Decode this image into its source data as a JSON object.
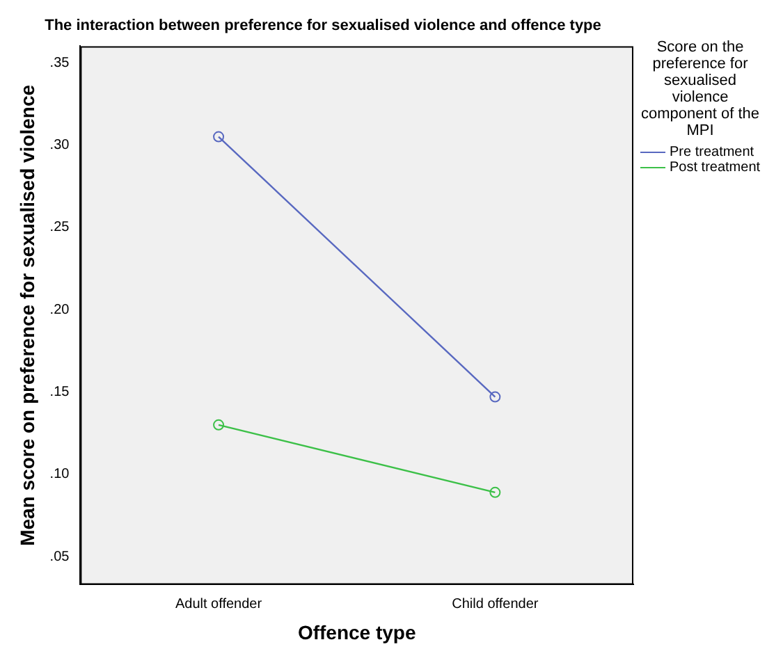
{
  "chart_data": {
    "type": "line",
    "title": "The interaction between preference for sexualised violence and offence type",
    "xlabel": "Offence type",
    "ylabel": "Mean score on preference for sexualised violence",
    "legend_title": "Score on the preference for sexualised violence component of the MPI",
    "categories": [
      "Adult offender",
      "Child offender"
    ],
    "series": [
      {
        "name": "Pre treatment",
        "color": "#5868c0",
        "values": [
          0.305,
          0.147
        ]
      },
      {
        "name": "Post treatment",
        "color": "#3cc048",
        "values": [
          0.13,
          0.089
        ]
      }
    ],
    "ylim": [
      0.033,
      0.36
    ],
    "yticks": [
      {
        "value": 0.05,
        "label": ".05"
      },
      {
        "value": 0.1,
        "label": ".10"
      },
      {
        "value": 0.15,
        "label": ".15"
      },
      {
        "value": 0.2,
        "label": ".20"
      },
      {
        "value": 0.25,
        "label": ".25"
      },
      {
        "value": 0.3,
        "label": ".30"
      },
      {
        "value": 0.35,
        "label": ".35"
      }
    ],
    "grid": false,
    "legend": "right",
    "marker": "circle",
    "line_style": "solid"
  }
}
